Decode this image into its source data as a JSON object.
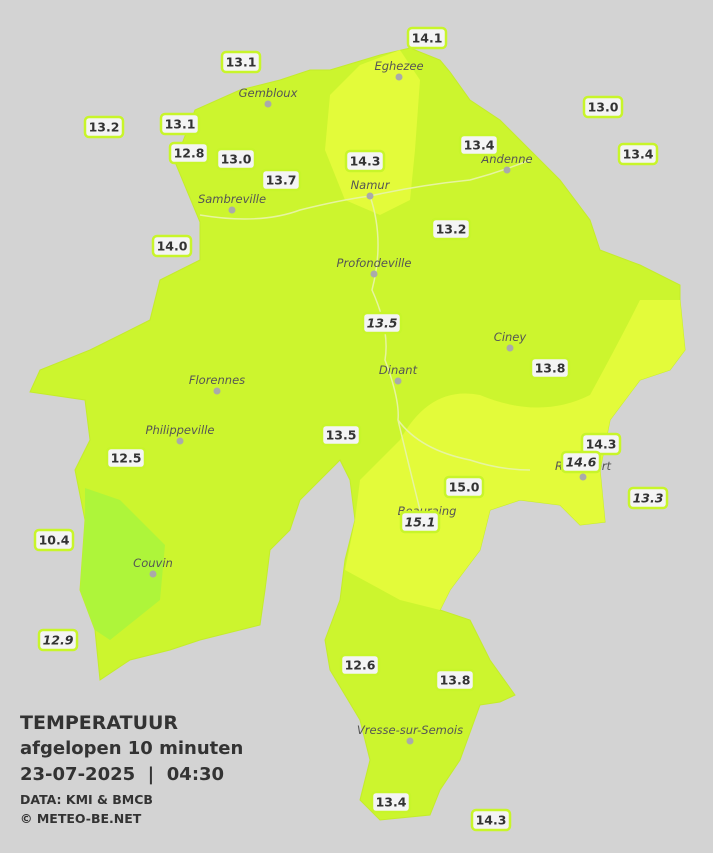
{
  "title": "TEMPERATUUR",
  "subtitle": "afgelopen 10 minuten",
  "datetime": "23-07-2025  |  04:30",
  "credits": [
    "DATA: KMI & BMCB",
    "© METEO-BE.NET"
  ],
  "cities": [
    "Eghezee",
    "Gembloux",
    "Andenne",
    "Namur",
    "Sambreville",
    "Profondeville",
    "Ciney",
    "Dinant",
    "Florennes",
    "Philippeville",
    "Rochefort",
    "Beauraing",
    "Couvin",
    "Vresse-sur-Semois"
  ],
  "stations": [
    {
      "label": "14.1",
      "italic": false
    },
    {
      "label": "13.1",
      "italic": false
    },
    {
      "label": "13.0",
      "italic": false
    },
    {
      "label": "13.2",
      "italic": false
    },
    {
      "label": "13.1",
      "italic": false
    },
    {
      "label": "13.4",
      "italic": false
    },
    {
      "label": "13.4",
      "italic": false
    },
    {
      "label": "12.8",
      "italic": false
    },
    {
      "label": "13.0",
      "italic": false
    },
    {
      "label": "14.3",
      "italic": false
    },
    {
      "label": "13.7",
      "italic": false
    },
    {
      "label": "13.2",
      "italic": false
    },
    {
      "label": "14.0",
      "italic": false
    },
    {
      "label": "13.5",
      "italic": true
    },
    {
      "label": "13.8",
      "italic": false
    },
    {
      "label": "13.5",
      "italic": false
    },
    {
      "label": "14.3",
      "italic": false
    },
    {
      "label": "14.6",
      "italic": true
    },
    {
      "label": "12.5",
      "italic": false
    },
    {
      "label": "13.3",
      "italic": true
    },
    {
      "label": "15.0",
      "italic": false
    },
    {
      "label": "15.1",
      "italic": true
    },
    {
      "label": "10.4",
      "italic": false
    },
    {
      "label": "12.9",
      "italic": true
    },
    {
      "label": "12.6",
      "italic": false
    },
    {
      "label": "13.8",
      "italic": false
    },
    {
      "label": "13.4",
      "italic": false
    },
    {
      "label": "14.3",
      "italic": false
    }
  ]
}
